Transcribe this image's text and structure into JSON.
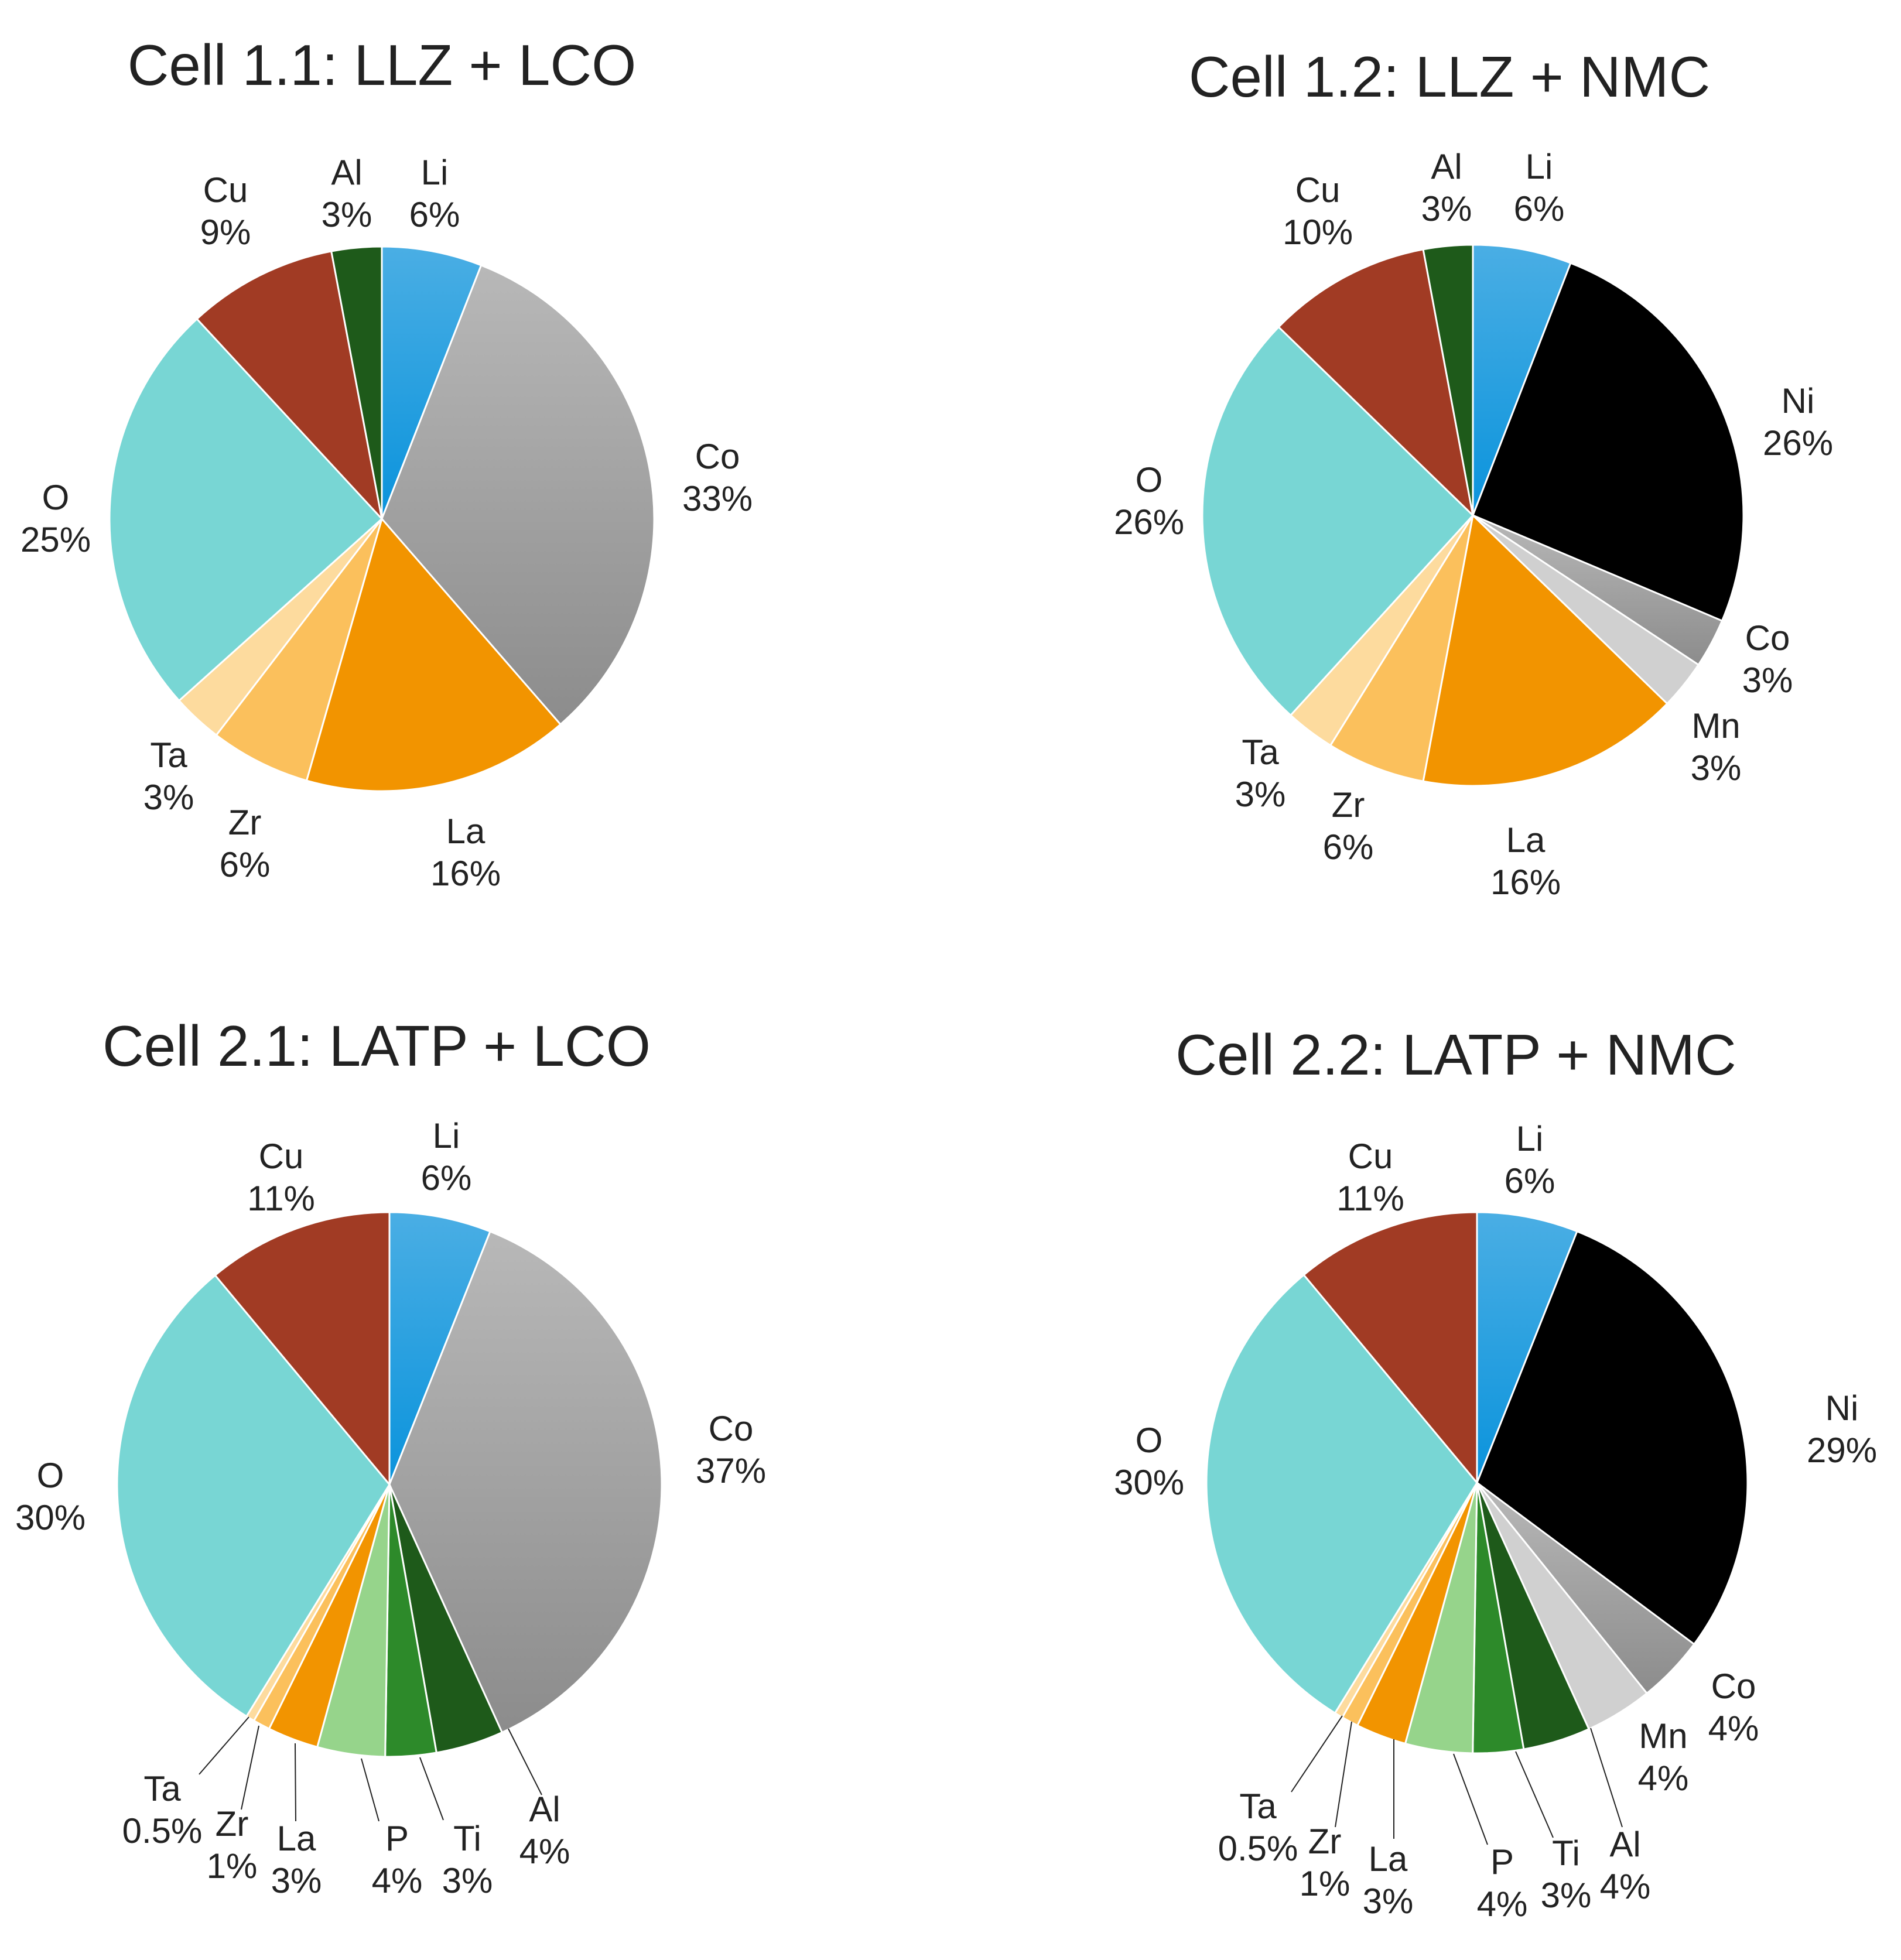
{
  "colors": {
    "Li": "#17a2e8",
    "Co": "#a4a4a4",
    "Ni": "#000000",
    "Mn": "#d0d0d0",
    "La": "#f29400",
    "Zr": "#fbc05c",
    "Ta": "#fddb9e",
    "O": "#78d6d4",
    "Cu": "#a13b24",
    "Al": "#1e5a1a",
    "Ti": "#2d8a2a",
    "P": "#96d48b"
  },
  "chart_data": [
    {
      "type": "pie",
      "title": "Cell 1.1: LLZ + LCO",
      "slices": [
        {
          "name": "Li",
          "label": "6%",
          "value": 6
        },
        {
          "name": "Co",
          "label": "33%",
          "value": 33
        },
        {
          "name": "La",
          "label": "16%",
          "value": 16
        },
        {
          "name": "Zr",
          "label": "6%",
          "value": 6
        },
        {
          "name": "Ta",
          "label": "3%",
          "value": 3
        },
        {
          "name": "O",
          "label": "25%",
          "value": 25
        },
        {
          "name": "Cu",
          "label": "9%",
          "value": 9
        },
        {
          "name": "Al",
          "label": "3%",
          "value": 3
        }
      ]
    },
    {
      "type": "pie",
      "title": "Cell 1.2: LLZ + NMC",
      "slices": [
        {
          "name": "Li",
          "label": "6%",
          "value": 6
        },
        {
          "name": "Ni",
          "label": "26%",
          "value": 26
        },
        {
          "name": "Co",
          "label": "3%",
          "value": 3
        },
        {
          "name": "Mn",
          "label": "3%",
          "value": 3
        },
        {
          "name": "La",
          "label": "16%",
          "value": 16
        },
        {
          "name": "Zr",
          "label": "6%",
          "value": 6
        },
        {
          "name": "Ta",
          "label": "3%",
          "value": 3
        },
        {
          "name": "O",
          "label": "26%",
          "value": 26
        },
        {
          "name": "Cu",
          "label": "10%",
          "value": 10
        },
        {
          "name": "Al",
          "label": "3%",
          "value": 3
        }
      ]
    },
    {
      "type": "pie",
      "title": "Cell 2.1: LATP + LCO",
      "slices": [
        {
          "name": "Li",
          "label": "6%",
          "value": 6
        },
        {
          "name": "Co",
          "label": "37%",
          "value": 37
        },
        {
          "name": "Al",
          "label": "4%",
          "value": 4
        },
        {
          "name": "Ti",
          "label": "3%",
          "value": 3
        },
        {
          "name": "P",
          "label": "4%",
          "value": 4
        },
        {
          "name": "La",
          "label": "3%",
          "value": 3
        },
        {
          "name": "Zr",
          "label": "1%",
          "value": 1
        },
        {
          "name": "Ta",
          "label": "0.5%",
          "value": 0.5
        },
        {
          "name": "O",
          "label": "30%",
          "value": 30
        },
        {
          "name": "Cu",
          "label": "11%",
          "value": 11
        }
      ]
    },
    {
      "type": "pie",
      "title": "Cell 2.2: LATP + NMC",
      "slices": [
        {
          "name": "Li",
          "label": "6%",
          "value": 6
        },
        {
          "name": "Ni",
          "label": "29%",
          "value": 29
        },
        {
          "name": "Co",
          "label": "4%",
          "value": 4
        },
        {
          "name": "Mn",
          "label": "4%",
          "value": 4
        },
        {
          "name": "Al",
          "label": "4%",
          "value": 4
        },
        {
          "name": "Ti",
          "label": "3%",
          "value": 3
        },
        {
          "name": "P",
          "label": "4%",
          "value": 4
        },
        {
          "name": "La",
          "label": "3%",
          "value": 3
        },
        {
          "name": "Zr",
          "label": "1%",
          "value": 1
        },
        {
          "name": "Ta",
          "label": "0.5%",
          "value": 0.5
        },
        {
          "name": "O",
          "label": "30%",
          "value": 30
        },
        {
          "name": "Cu",
          "label": "11%",
          "value": 11
        }
      ]
    }
  ]
}
